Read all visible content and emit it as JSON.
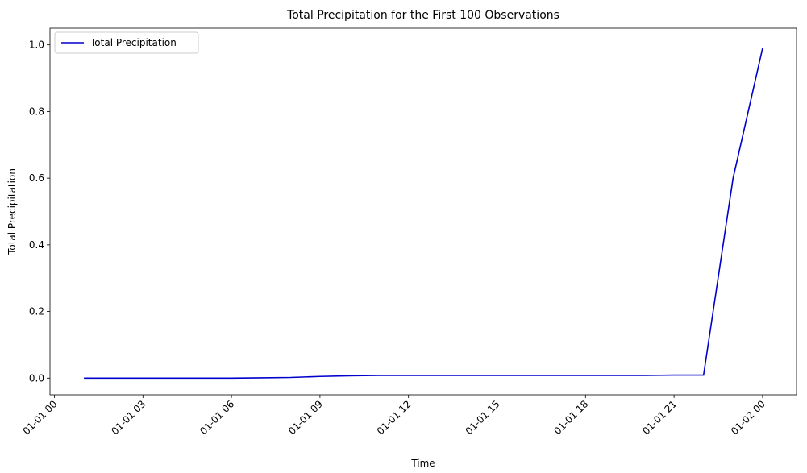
{
  "chart_data": {
    "type": "line",
    "title": "Total Precipitation for the First 100 Observations",
    "xlabel": "Time",
    "ylabel": "Total Precipitation",
    "x_ticks": [
      "01-01 00",
      "01-01 03",
      "01-01 06",
      "01-01 09",
      "01-01 12",
      "01-01 15",
      "01-01 18",
      "01-01 21",
      "01-02 00"
    ],
    "y_ticks": [
      "0.0",
      "0.2",
      "0.4",
      "0.6",
      "0.8",
      "1.0"
    ],
    "xlim": [
      "2000-01-01 00:00",
      "2000-01-02 00:00"
    ],
    "ylim": [
      -0.05,
      1.05
    ],
    "grid": false,
    "legend_position": "top-left",
    "series": [
      {
        "name": "Total Precipitation",
        "color": "#0000cc",
        "x": [
          "01-01 01",
          "01-01 02",
          "01-01 03",
          "01-01 04",
          "01-01 05",
          "01-01 06",
          "01-01 07",
          "01-01 08",
          "01-01 09",
          "01-01 10",
          "01-01 11",
          "01-01 12",
          "01-01 13",
          "01-01 14",
          "01-01 15",
          "01-01 16",
          "01-01 17",
          "01-01 18",
          "01-01 19",
          "01-01 20",
          "01-01 21",
          "01-01 22",
          "01-01 23",
          "01-02 00"
        ],
        "y": [
          0.0,
          0.0,
          0.0,
          0.0,
          0.0,
          0.0,
          0.001,
          0.002,
          0.005,
          0.007,
          0.008,
          0.008,
          0.008,
          0.008,
          0.008,
          0.008,
          0.008,
          0.008,
          0.008,
          0.008,
          0.009,
          0.009,
          0.6,
          0.99
        ]
      }
    ]
  }
}
